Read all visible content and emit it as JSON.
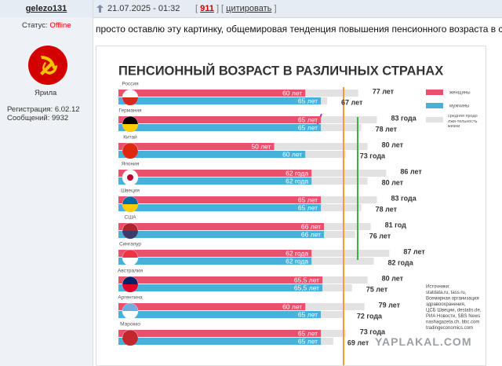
{
  "post": {
    "author": "gelezo131",
    "status_label": "Статус:",
    "status": "Offline",
    "avatar_caption": "Ярила",
    "registration": "Регистрация: 6.02.12",
    "messages": "Сообщений: 9932",
    "date": "21.07.2025 - 01:32",
    "header_links": [
      "[",
      "911",
      "] [",
      "цитировать",
      "]"
    ],
    "text": "просто оставлю эту картинку, общемировая тенденция повышения пенсионного возраста в с"
  },
  "chart_data": {
    "type": "bar",
    "title": "ПЕНСИОННЫЙ ВОЗРАСТ В РАЗЛИЧНЫХ СТРАНАХ",
    "categories": [
      "Россия",
      "Германия",
      "Китай",
      "Япония",
      "Швеция",
      "США",
      "Сингапур",
      "Австралия",
      "Аргентина",
      "Марокко"
    ],
    "series": [
      {
        "name": "женщины",
        "color": "#e9506b",
        "values": [
          60,
          65,
          50,
          62,
          65,
          66,
          62,
          65.5,
          60,
          65
        ],
        "value_labels": [
          "60 лет",
          "65 лет",
          "50 лет",
          "62 года",
          "65 лет",
          "66 лет",
          "62 года",
          "65,5 лет",
          "60 лет",
          "65 лет"
        ]
      },
      {
        "name": "мужчины",
        "color": "#47b1d9",
        "values": [
          65,
          65,
          60,
          62,
          65,
          66,
          62,
          65.5,
          65,
          65
        ],
        "value_labels": [
          "65 лет",
          "65 лет",
          "60 лет",
          "62 года",
          "65 лет",
          "66 лет",
          "62 года",
          "65,5 лет",
          "65 лет",
          "65 лет"
        ]
      }
    ],
    "life_expectancy": {
      "name": "средняя продолжи-тельность жизни",
      "color": "#e2e2e2",
      "women": [
        77,
        83,
        80,
        86,
        83,
        81,
        87,
        80,
        79,
        73
      ],
      "women_labels": [
        "77 лет",
        "83 года",
        "80 лет",
        "86 лет",
        "83 года",
        "81 год",
        "87 лет",
        "80 лет",
        "79 лет",
        "73 года"
      ],
      "men": [
        67,
        78,
        73,
        80,
        78,
        76,
        82,
        75,
        72,
        69
      ],
      "men_labels": [
        "67 лет",
        "78 лет",
        "73 года",
        "80 лет",
        "78 лет",
        "76 лет",
        "82 года",
        "75 лет",
        "72 года",
        "69 лет"
      ]
    },
    "sources": [
      "Источники:",
      "statdata.ru, tass.ru,",
      "Всемирная организация",
      "здравоохранения,",
      "ЦСБ Швеции, destatis.de,",
      "РИА Новости, SBS News",
      "nashagazeta.ch, bbc.com",
      "tradingeconomics.com"
    ],
    "watermark": "YAPLAKAL.COM"
  }
}
